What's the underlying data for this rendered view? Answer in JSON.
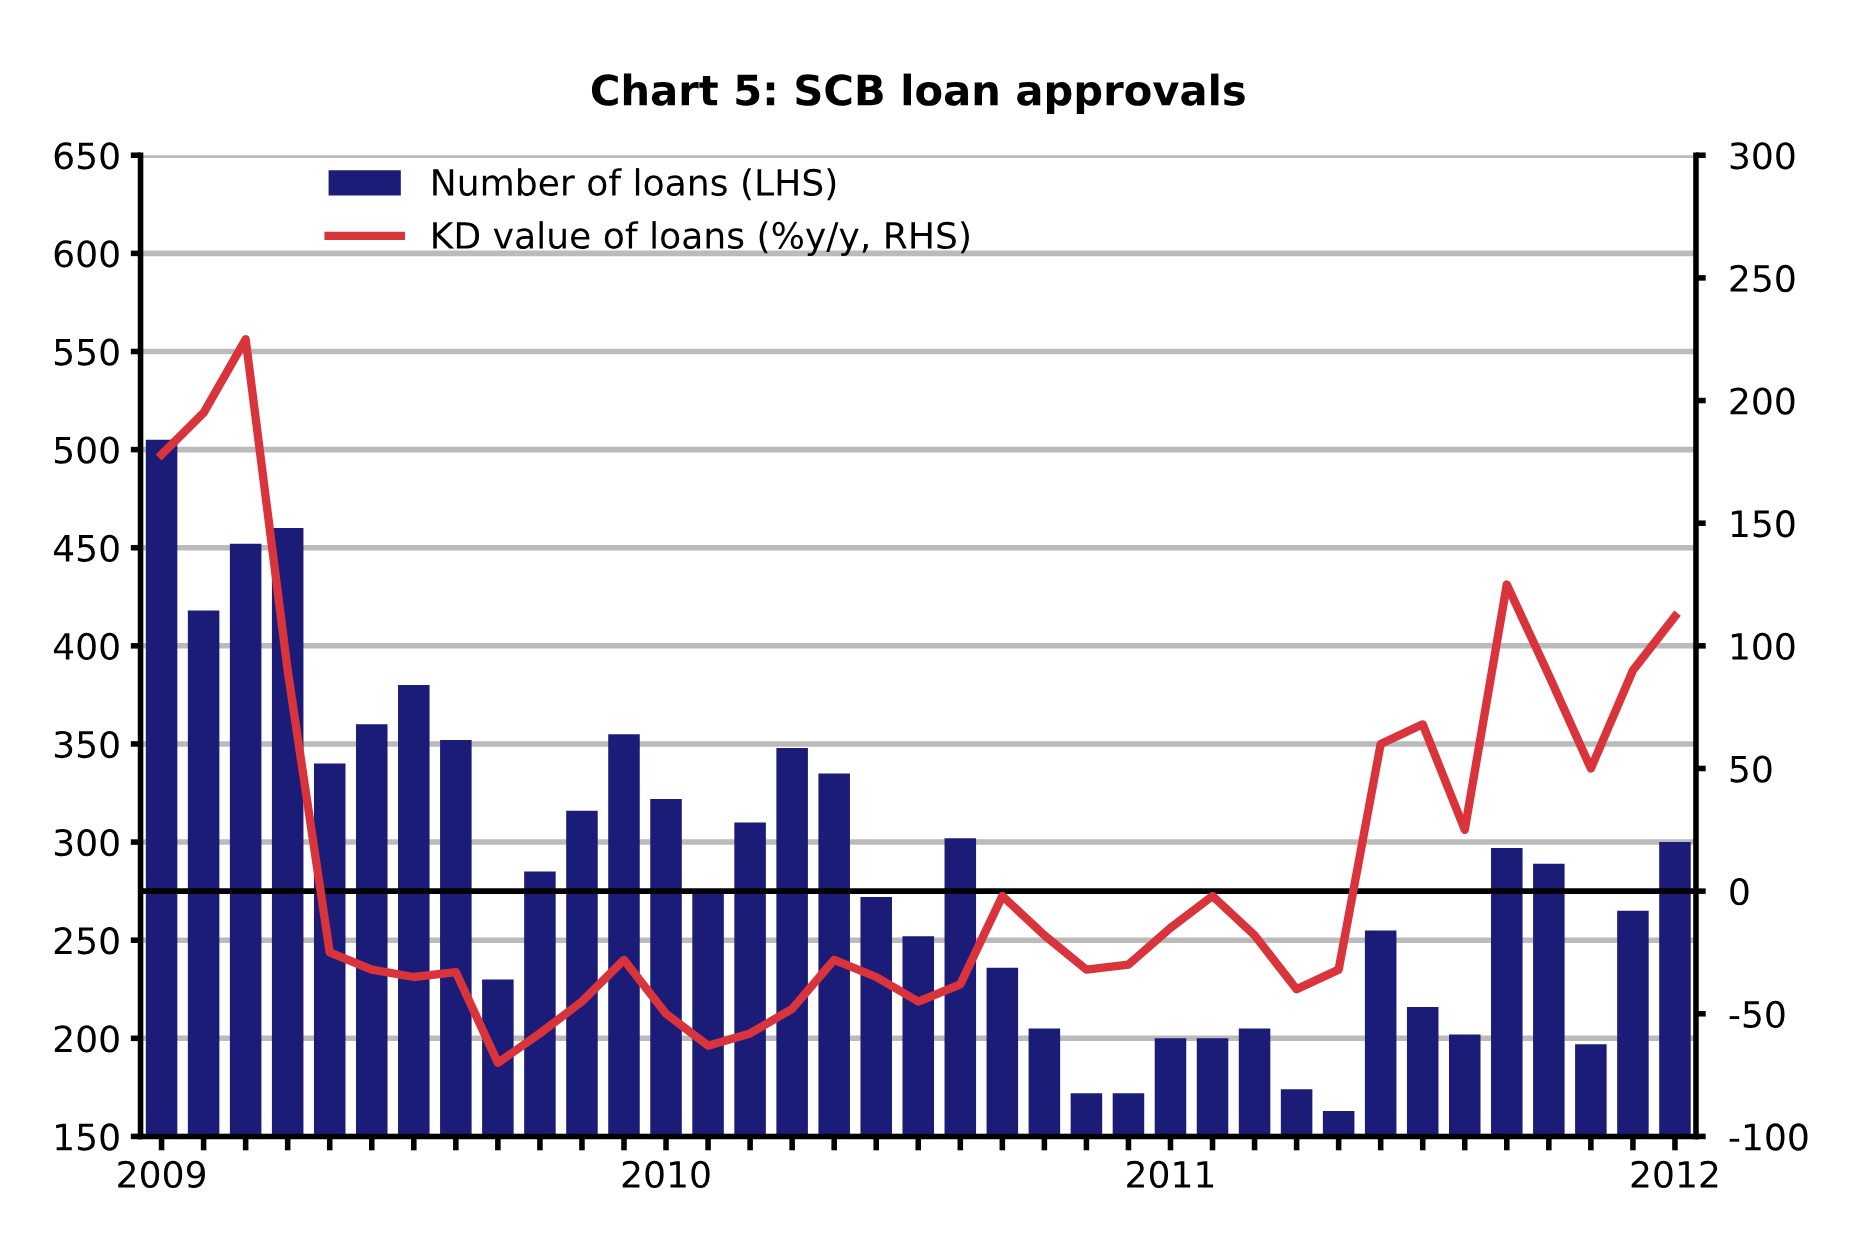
{
  "chart_data": {
    "type": "bar",
    "title": "Chart 5: SCB loan approvals",
    "categories": [
      "2009",
      null,
      null,
      null,
      null,
      null,
      null,
      null,
      null,
      null,
      null,
      null,
      "2010",
      null,
      null,
      null,
      null,
      null,
      null,
      null,
      null,
      null,
      null,
      null,
      "2011",
      null,
      null,
      null,
      null,
      null,
      null,
      null,
      null,
      null,
      null,
      null,
      "2012"
    ],
    "series": [
      {
        "name": "Number of loans (LHS)",
        "color": "#1b1b78",
        "values": [
          505,
          418,
          452,
          460,
          340,
          360,
          380,
          352,
          230,
          285,
          316,
          355,
          322,
          276,
          310,
          348,
          335,
          272,
          252,
          302,
          236,
          205,
          172,
          172,
          200,
          200,
          205,
          174,
          163,
          255,
          216,
          202,
          297,
          289,
          197,
          265,
          300
        ]
      },
      {
        "name": "KD value of loans (%y/y, RHS)",
        "type": "line",
        "axis": "y2",
        "color": "#d9343c",
        "values": [
          178,
          195,
          225,
          90,
          -25,
          -32,
          -35,
          -33,
          -70,
          -58,
          -45,
          -28,
          -50,
          -63,
          -58,
          -48,
          -28,
          -35,
          -45,
          -38,
          -2,
          -18,
          -32,
          -30,
          -15,
          -2,
          -18,
          -40,
          -32,
          60,
          68,
          25,
          125,
          88,
          50,
          90,
          112
        ]
      }
    ],
    "ylim": [
      150,
      650
    ],
    "yticks": [
      150,
      200,
      250,
      300,
      350,
      400,
      450,
      500,
      550,
      600,
      650
    ],
    "y2lim": [
      -100,
      300
    ],
    "y2ticks": [
      -100,
      -50,
      0,
      50,
      100,
      150,
      200,
      250,
      300
    ],
    "ref_lines": [
      {
        "axis": "y2",
        "value": 0,
        "color": "#000000"
      }
    ],
    "grid": "y",
    "legend": "top left",
    "marker": "none",
    "line_style": "solid"
  }
}
